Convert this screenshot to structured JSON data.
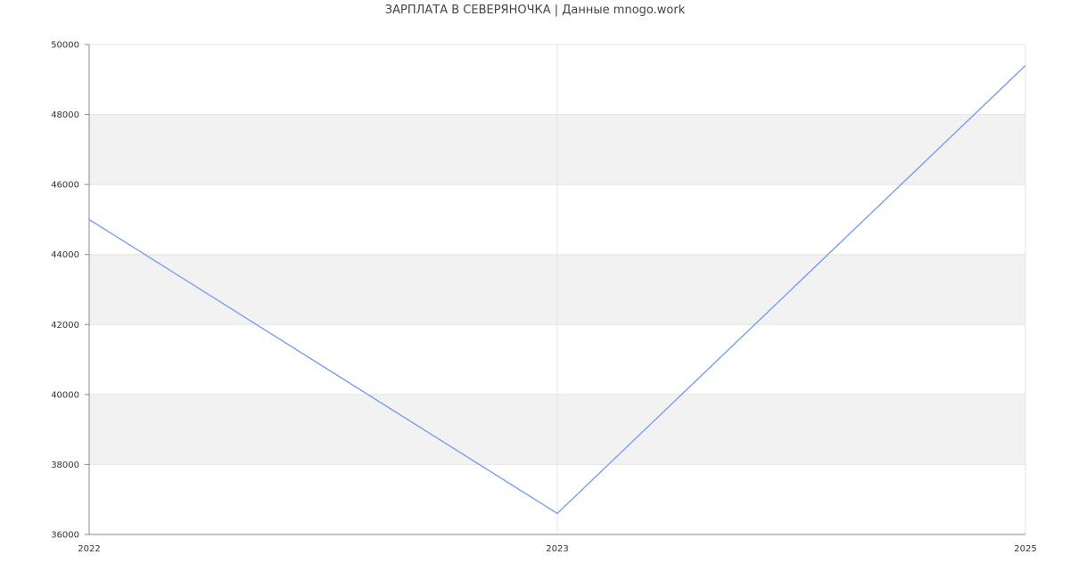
{
  "chart_data": {
    "type": "line",
    "title": "ЗАРПЛАТА В СЕВЕРЯНОЧКА | Данные mnogo.work",
    "xlabel": "",
    "ylabel": "",
    "categories": [
      "2022",
      "2023",
      "2025"
    ],
    "series": [
      {
        "values": [
          45000,
          36600,
          49400
        ],
        "color": "#6f9af0"
      }
    ],
    "ylim": [
      36000,
      50000
    ],
    "yticks": [
      36000,
      38000,
      40000,
      42000,
      44000,
      46000,
      48000,
      50000
    ],
    "grid": true,
    "band_color": "#f2f2f2",
    "legend": "none"
  }
}
